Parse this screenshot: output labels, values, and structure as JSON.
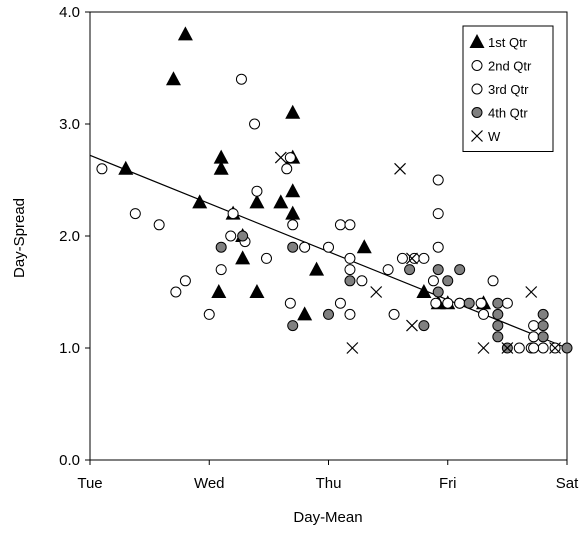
{
  "chart_data": {
    "type": "scatter",
    "title": "",
    "xlabel": "Day-Mean",
    "ylabel": "Day-Spread",
    "x_categories": [
      "Tue",
      "Wed",
      "Thu",
      "Fri",
      "Sat"
    ],
    "xlim": [
      0,
      4
    ],
    "ylim": [
      0,
      4
    ],
    "yticks": [
      "0.0",
      "1.0",
      "2.0",
      "3.0",
      "4.0"
    ],
    "grid": false,
    "legend_position": "top-right",
    "trendline": {
      "x": [
        0,
        4
      ],
      "y": [
        2.72,
        1.0
      ]
    },
    "series": [
      {
        "name": "1st Qtr",
        "marker": "triangle",
        "fill": "#000000",
        "points": [
          [
            0.3,
            2.6
          ],
          [
            0.7,
            3.4
          ],
          [
            0.8,
            3.8
          ],
          [
            0.92,
            2.3
          ],
          [
            1.08,
            1.5
          ],
          [
            1.1,
            2.7
          ],
          [
            1.1,
            2.6
          ],
          [
            1.2,
            2.2
          ],
          [
            1.28,
            1.8
          ],
          [
            1.28,
            2.0
          ],
          [
            1.4,
            2.3
          ],
          [
            1.4,
            1.5
          ],
          [
            1.6,
            2.3
          ],
          [
            1.7,
            3.1
          ],
          [
            1.7,
            2.7
          ],
          [
            1.7,
            2.4
          ],
          [
            1.7,
            2.2
          ],
          [
            1.8,
            1.3
          ],
          [
            1.9,
            1.7
          ],
          [
            2.3,
            1.9
          ],
          [
            2.8,
            1.5
          ],
          [
            2.92,
            1.4
          ],
          [
            3.0,
            1.4
          ],
          [
            3.3,
            1.4
          ]
        ]
      },
      {
        "name": "2nd Qtr",
        "marker": "circle",
        "fill": "#ffffff",
        "points": [
          [
            0.1,
            2.6
          ],
          [
            0.38,
            2.2
          ],
          [
            0.58,
            2.1
          ],
          [
            0.72,
            1.5
          ],
          [
            0.8,
            1.6
          ],
          [
            1.0,
            1.3
          ],
          [
            1.1,
            1.7
          ],
          [
            1.2,
            2.2
          ],
          [
            1.27,
            3.4
          ],
          [
            1.3,
            1.95
          ],
          [
            1.38,
            3.0
          ],
          [
            1.4,
            2.4
          ],
          [
            1.48,
            1.8
          ],
          [
            1.68,
            1.4
          ],
          [
            1.68,
            2.7
          ],
          [
            1.7,
            2.1
          ],
          [
            1.8,
            1.9
          ],
          [
            2.0,
            1.9
          ],
          [
            2.1,
            1.4
          ],
          [
            2.1,
            2.1
          ],
          [
            2.18,
            2.1
          ],
          [
            2.18,
            1.8
          ],
          [
            2.18,
            1.3
          ],
          [
            2.28,
            1.6
          ],
          [
            2.55,
            1.3
          ],
          [
            2.72,
            1.8
          ],
          [
            2.8,
            1.8
          ],
          [
            2.88,
            1.6
          ],
          [
            2.92,
            2.5
          ],
          [
            2.92,
            2.2
          ],
          [
            2.92,
            1.9
          ],
          [
            3.0,
            1.4
          ],
          [
            3.1,
            1.4
          ],
          [
            3.3,
            1.3
          ],
          [
            3.38,
            1.6
          ],
          [
            3.6,
            1.0
          ],
          [
            3.7,
            1.0
          ],
          [
            3.72,
            1.2
          ],
          [
            3.72,
            1.1
          ],
          [
            3.8,
            1.0
          ],
          [
            3.9,
            1.0
          ]
        ]
      },
      {
        "name": "3rd Qtr",
        "marker": "circle",
        "fill": "#ffffff",
        "points": [
          [
            1.18,
            2.0
          ],
          [
            1.65,
            2.6
          ],
          [
            2.18,
            1.7
          ],
          [
            2.5,
            1.7
          ],
          [
            2.62,
            1.8
          ],
          [
            2.9,
            1.4
          ],
          [
            3.1,
            1.4
          ],
          [
            3.28,
            1.4
          ],
          [
            3.5,
            1.4
          ],
          [
            3.72,
            1.0
          ]
        ]
      },
      {
        "name": "4th Qtr",
        "marker": "circle",
        "fill": "#808080",
        "points": [
          [
            1.1,
            1.9
          ],
          [
            1.28,
            2.0
          ],
          [
            1.7,
            1.9
          ],
          [
            1.7,
            1.2
          ],
          [
            2.0,
            1.3
          ],
          [
            2.18,
            1.6
          ],
          [
            2.68,
            1.7
          ],
          [
            2.8,
            1.2
          ],
          [
            2.92,
            1.7
          ],
          [
            2.92,
            1.5
          ],
          [
            3.0,
            1.6
          ],
          [
            3.1,
            1.7
          ],
          [
            3.18,
            1.4
          ],
          [
            3.42,
            1.4
          ],
          [
            3.42,
            1.3
          ],
          [
            3.42,
            1.2
          ],
          [
            3.42,
            1.1
          ],
          [
            3.5,
            1.0
          ],
          [
            3.8,
            1.3
          ],
          [
            3.8,
            1.2
          ],
          [
            3.8,
            1.1
          ],
          [
            4.0,
            1.0
          ]
        ]
      },
      {
        "name": "W",
        "marker": "x",
        "fill": "none",
        "points": [
          [
            1.6,
            2.7
          ],
          [
            2.2,
            1.0
          ],
          [
            2.4,
            1.5
          ],
          [
            2.6,
            2.6
          ],
          [
            2.7,
            1.8
          ],
          [
            2.7,
            1.2
          ],
          [
            3.3,
            1.0
          ],
          [
            3.5,
            1.0
          ],
          [
            3.7,
            1.5
          ],
          [
            3.9,
            1.0
          ]
        ]
      }
    ]
  }
}
